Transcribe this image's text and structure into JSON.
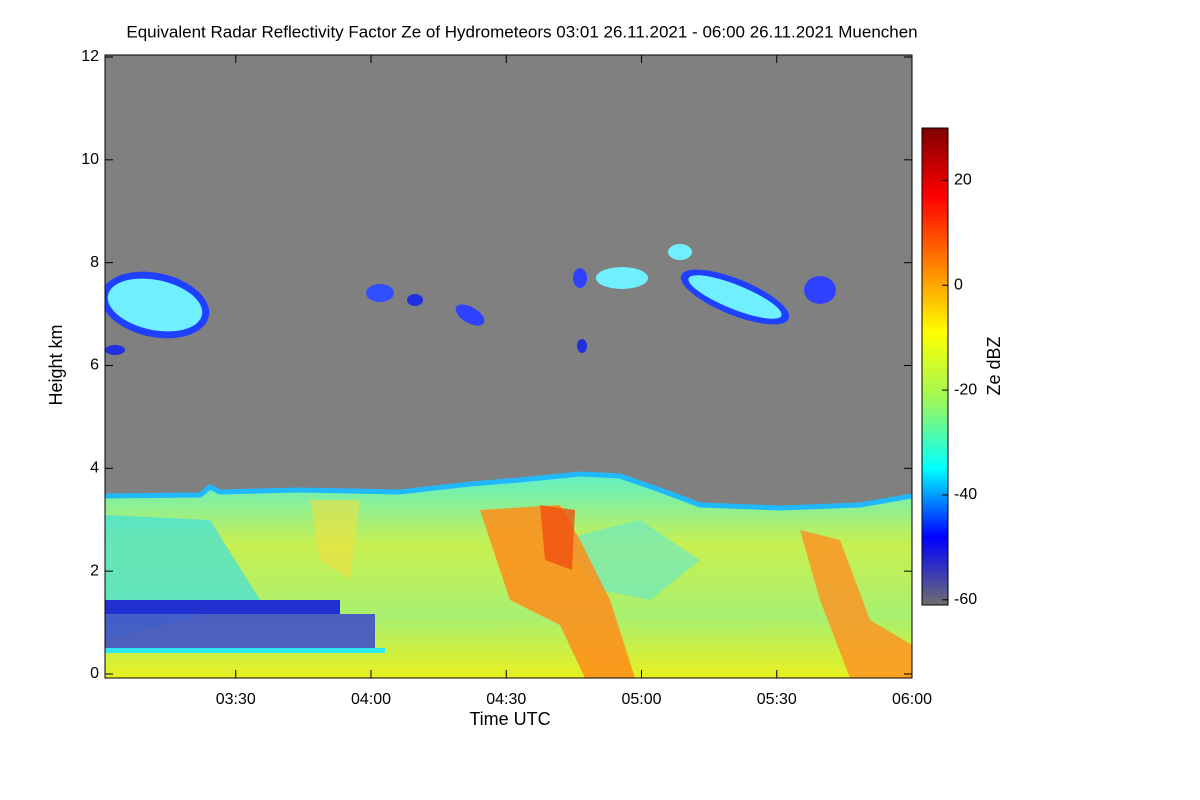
{
  "chart_data": {
    "type": "heatmap",
    "title": "Equivalent Radar Reflectivity Factor Ze of Hydrometeors   03:01 26.11.2021 - 06:00 26.11.2021 Muenchen",
    "x_label": "Time UTC",
    "y_label": "Height km",
    "xlim": [
      "03:01",
      "06:00"
    ],
    "xticks": [
      "03:30",
      "04:00",
      "04:30",
      "05:00",
      "05:30",
      "06:00"
    ],
    "ylim": [
      0,
      12
    ],
    "yticks": [
      0,
      2,
      4,
      6,
      8,
      10,
      12
    ],
    "colorbar": {
      "label": "Ze dBZ",
      "zlim": [
        -61,
        30
      ],
      "ticks": [
        -60,
        -40,
        -20,
        0,
        20
      ],
      "colormap": [
        "#6e6e6e",
        "#0000ff",
        "#00ffff",
        "#9cf75a",
        "#ffff00",
        "#ff8000",
        "#ff0000",
        "#800000"
      ]
    }
  }
}
